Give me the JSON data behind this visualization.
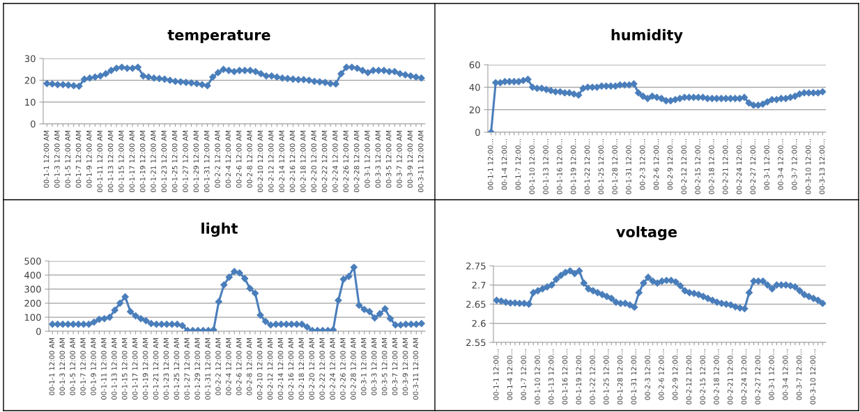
{
  "chart_data": [
    {
      "type": "line",
      "title": "temperature",
      "color": "#4a7ebb",
      "marker": "diamond",
      "line_style": "solid",
      "grid": "y",
      "legend": false,
      "ylim": [
        0,
        30
      ],
      "yticks": [
        0,
        10,
        20,
        30
      ],
      "categories": [
        "00-1-1 12:00 AM",
        null,
        "00-1-3 12:00 AM",
        null,
        "00-1-5 12:00 AM",
        null,
        "00-1-7 12:00 AM",
        null,
        "00-1-9 12:00 AM",
        null,
        "00-1-11 12:00 AM",
        null,
        "00-1-13 12:00 AM",
        null,
        "00-1-15 12:00 AM",
        null,
        "00-1-17 12:00 AM",
        null,
        "00-1-19 12:00 AM",
        null,
        "00-1-21 12:00 AM",
        null,
        "00-1-23 12:00 AM",
        null,
        "00-1-25 12:00 AM",
        null,
        "00-1-27 12:00 AM",
        null,
        "00-1-29 12:00 AM",
        null,
        "00-1-31 12:00 AM",
        null,
        "00-2-2 12:00 AM",
        null,
        "00-2-4 12:00 AM",
        null,
        "00-2-6 12:00 AM",
        null,
        "00-2-8 12:00 AM",
        null,
        "00-2-10 12:00 AM",
        null,
        "00-2-12 12:00 AM",
        null,
        "00-2-14 12:00 AM",
        null,
        "00-2-16 12:00 AM",
        null,
        "00-2-18 12:00 AM",
        null,
        "00-2-20 12:00 AM",
        null,
        "00-2-22 12:00 AM",
        null,
        "00-2-24 12:00 AM",
        null,
        "00-2-26 12:00 AM",
        null,
        "00-2-28 12:00 AM",
        null,
        "00-3-1 12:00 AM",
        null,
        "00-3-3 12:00 AM",
        null,
        "00-3-5 12:00 AM",
        null,
        "00-3-7 12:00 AM",
        null,
        "00-3-9 12:00 AM",
        null,
        "00-3-11 12:00 AM"
      ],
      "values": [
        18.5,
        18.3,
        18,
        18,
        17.8,
        17.5,
        17.3,
        20.5,
        21,
        21.5,
        22,
        23,
        24.5,
        25.5,
        26,
        25.5,
        25.5,
        26,
        22,
        21.5,
        21,
        20.8,
        20.5,
        20,
        19.5,
        19.3,
        19,
        18.8,
        18.5,
        18,
        17.5,
        21.5,
        23.5,
        25,
        24.5,
        24,
        24.5,
        24.5,
        24.5,
        24,
        23,
        22,
        22,
        21.5,
        21,
        20.8,
        20.5,
        20.3,
        20.3,
        20,
        19.5,
        19.3,
        19,
        18.5,
        18.3,
        23,
        26,
        26,
        25.5,
        24.5,
        23.5,
        24.5,
        24.5,
        24.5,
        24,
        24,
        23,
        22.5,
        22,
        21.5,
        21
      ]
    },
    {
      "type": "line",
      "title": "humidity",
      "color": "#4a7ebb",
      "marker": "diamond",
      "line_style": "solid",
      "grid": "y",
      "legend": false,
      "ylim": [
        0,
        60
      ],
      "yticks": [
        0,
        20,
        40,
        60
      ],
      "categories": [
        "00-1-1 12:00...",
        null,
        null,
        "00-1-4 12:00...",
        null,
        null,
        "00-1-7 12:00...",
        null,
        null,
        "00-1-10 12:00...",
        null,
        null,
        "00-1-13 12:00...",
        null,
        null,
        "00-1-16 12:00...",
        null,
        null,
        "00-1-19 12:00...",
        null,
        null,
        "00-1-22 12:00...",
        null,
        null,
        "00-1-25 12:00...",
        null,
        null,
        "00-1-28 12:00...",
        null,
        null,
        "00-1-31 12:00...",
        null,
        null,
        "00-2-3 12:00...",
        null,
        null,
        "00-2-6 12:00...",
        null,
        null,
        "00-2-9 12:00...",
        null,
        null,
        "00-2-12 12:00...",
        null,
        null,
        "00-2-15 12:00...",
        null,
        null,
        "00-2-18 12:00...",
        null,
        null,
        "00-2-21 12:00...",
        null,
        null,
        "00-2-24 12:00...",
        null,
        null,
        "00-2-27 12:00...",
        null,
        null,
        "00-3-1 12:00...",
        null,
        null,
        "00-3-4 12:00...",
        null,
        null,
        "00-3-7 12:00...",
        null,
        null,
        "00-3-10 12:00...",
        null,
        null,
        "00-3-13 12:00..."
      ],
      "values": [
        0,
        44,
        44,
        45,
        45,
        45,
        45,
        46,
        47,
        40,
        39,
        39,
        38,
        37,
        36,
        36,
        35,
        35,
        34,
        33,
        39,
        40,
        40,
        40,
        41,
        41,
        41,
        41,
        42,
        42,
        42,
        43,
        35,
        32,
        30,
        32,
        31,
        30,
        28,
        28,
        29,
        30,
        31,
        31,
        31,
        31,
        31,
        30,
        30,
        30,
        30,
        30,
        30,
        30,
        30,
        31,
        26,
        24,
        24,
        25,
        27,
        29,
        29,
        30,
        30,
        31,
        32,
        34,
        35,
        35,
        35,
        35,
        36
      ]
    },
    {
      "type": "line",
      "title": "light",
      "color": "#4a7ebb",
      "marker": "diamond",
      "line_style": "solid",
      "grid": "y",
      "legend": false,
      "ylim": [
        0,
        500
      ],
      "yticks": [
        0,
        100,
        200,
        300,
        400,
        500
      ],
      "categories": [
        "00-1-1 12:00 AM",
        null,
        "00-1-3 12:00 AM",
        null,
        "00-1-5 12:00 AM",
        null,
        "00-1-7 12:00 AM",
        null,
        "00-1-9 12:00 AM",
        null,
        "00-1-11 12:00 AM",
        null,
        "00-1-13 12:00 AM",
        null,
        "00-1-15 12:00 AM",
        null,
        "00-1-17 12:00 AM",
        null,
        "00-1-19 12:00 AM",
        null,
        "00-1-21 12:00 AM",
        null,
        "00-1-23 12:00 AM",
        null,
        "00-1-25 12:00 AM",
        null,
        "00-1-27 12:00 AM",
        null,
        "00-1-29 12:00 AM",
        null,
        "00-1-31 12:00 AM",
        null,
        "00-2-2 12:00 AM",
        null,
        "00-2-4 12:00 AM",
        null,
        "00-2-6 12:00 AM",
        null,
        "00-2-8 12:00 AM",
        null,
        "00-2-10 12:00 AM",
        null,
        "00-2-12 12:00 AM",
        null,
        "00-2-14 12:00 AM",
        null,
        "00-2-16 12:00 AM",
        null,
        "00-2-18 12:00 AM",
        null,
        "00-2-20 12:00 AM",
        null,
        "00-2-22 12:00 AM",
        null,
        "00-2-24 12:00 AM",
        null,
        "00-2-26 12:00 AM",
        null,
        "00-2-28 12:00 AM",
        null,
        "00-3-1 12:00 AM",
        null,
        "00-3-3 12:00 AM",
        null,
        "00-3-5 12:00 AM",
        null,
        "00-3-7 12:00 AM",
        null,
        "00-3-9 12:00 AM",
        null,
        "00-3-11 12:00 AM",
        null
      ],
      "values": [
        50,
        50,
        50,
        50,
        50,
        50,
        50,
        50,
        65,
        85,
        90,
        100,
        150,
        200,
        245,
        140,
        110,
        90,
        75,
        55,
        50,
        50,
        50,
        50,
        50,
        40,
        5,
        5,
        5,
        5,
        5,
        10,
        210,
        330,
        385,
        425,
        415,
        375,
        305,
        270,
        115,
        70,
        45,
        50,
        50,
        50,
        50,
        50,
        50,
        30,
        5,
        5,
        5,
        5,
        10,
        220,
        370,
        390,
        455,
        185,
        155,
        140,
        95,
        125,
        160,
        90,
        45,
        45,
        50,
        50,
        50,
        55
      ]
    },
    {
      "type": "line",
      "title": "voltage",
      "color": "#4a7ebb",
      "marker": "diamond",
      "line_style": "solid",
      "grid": "y",
      "legend": false,
      "ylim": [
        2.55,
        2.75
      ],
      "yticks": [
        2.55,
        2.6,
        2.65,
        2.7,
        2.75
      ],
      "categories": [
        "00-1-1 12:00...",
        null,
        null,
        "00-1-4 12:00...",
        null,
        null,
        "00-1-7 12:00...",
        null,
        null,
        "00-1-10 12:00...",
        null,
        null,
        "00-1-13 12:00...",
        null,
        null,
        "00-1-16 12:00...",
        null,
        null,
        "00-1-19 12:00...",
        null,
        null,
        "00-1-22 12:00...",
        null,
        null,
        "00-1-25 12:00...",
        null,
        null,
        "00-1-28 12:00...",
        null,
        null,
        "00-1-31 12:00...",
        null,
        null,
        "00-2-3 12:00...",
        null,
        null,
        "00-2-6 12:00...",
        null,
        null,
        "00-2-9 12:00...",
        null,
        null,
        "00-2-12 12:00...",
        null,
        null,
        "00-2-15 12:00...",
        null,
        null,
        "00-2-18 12:00...",
        null,
        null,
        "00-2-21 12:00...",
        null,
        null,
        "00-2-24 12:00...",
        null,
        null,
        "00-2-27 12:00...",
        null,
        null,
        "00-3-1 12:00...",
        null,
        null,
        "00-3-4 12:00...",
        null,
        null,
        "00-3-7 12:00...",
        null,
        null,
        "00-3-10 12:00...",
        null,
        null
      ],
      "values": [
        2.66,
        2.658,
        2.655,
        2.653,
        2.653,
        2.652,
        2.652,
        2.65,
        2.68,
        2.685,
        2.69,
        2.695,
        2.7,
        2.715,
        2.725,
        2.733,
        2.737,
        2.73,
        2.737,
        2.705,
        2.69,
        2.685,
        2.68,
        2.675,
        2.67,
        2.665,
        2.655,
        2.652,
        2.652,
        2.648,
        2.642,
        2.68,
        2.705,
        2.72,
        2.71,
        2.705,
        2.71,
        2.712,
        2.712,
        2.708,
        2.698,
        2.685,
        2.68,
        2.678,
        2.675,
        2.67,
        2.665,
        2.66,
        2.655,
        2.652,
        2.65,
        2.648,
        2.643,
        2.64,
        2.638,
        2.68,
        2.71,
        2.71,
        2.71,
        2.7,
        2.69,
        2.7,
        2.7,
        2.7,
        2.698,
        2.695,
        2.685,
        2.675,
        2.67,
        2.665,
        2.66,
        2.652
      ]
    }
  ]
}
